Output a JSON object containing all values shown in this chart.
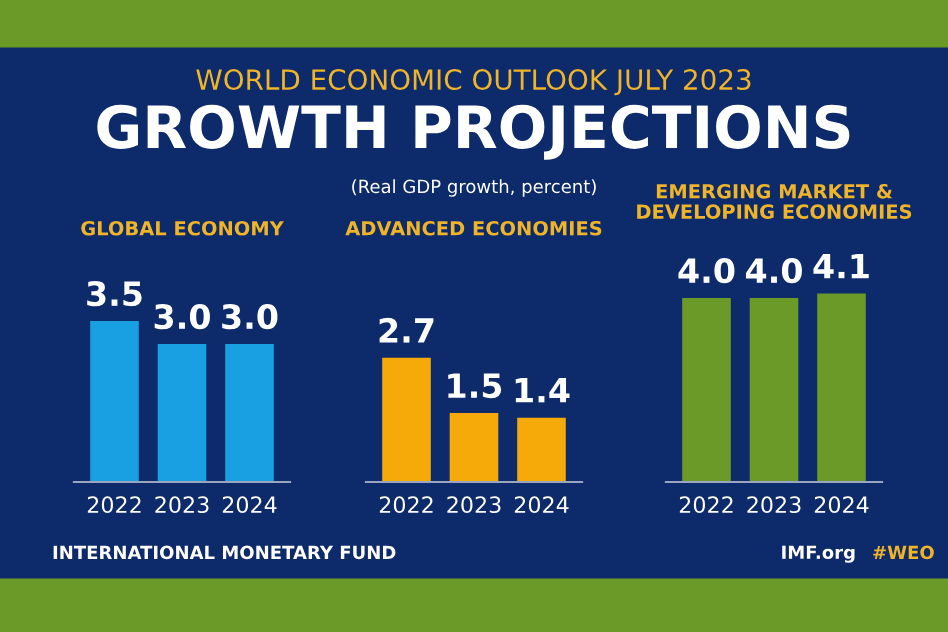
{
  "chart_data": [
    {
      "type": "bar",
      "title": "GLOBAL ECONOMY",
      "categories": [
        "2022",
        "2023",
        "2024"
      ],
      "values": [
        3.5,
        3.0,
        3.0
      ],
      "value_labels": [
        "3.5",
        "3.0",
        "3.0"
      ],
      "color": "#19a0e3",
      "tick_labels": "x",
      "annotations": [
        "WORLD ECONOMIC OUTLOOK JULY 2023",
        "GROWTH PROJECTIONS",
        "(Real GDP growth, percent)",
        "INTERNATIONAL MONETARY FUND",
        "IMF.org",
        "#WEO"
      ]
    },
    {
      "type": "bar",
      "title": "ADVANCED ECONOMIES",
      "categories": [
        "2022",
        "2023",
        "2024"
      ],
      "values": [
        2.7,
        1.5,
        1.4
      ],
      "value_labels": [
        "2.7",
        "1.5",
        "1.4"
      ],
      "color": "#f5aa0a",
      "tick_labels": "x"
    },
    {
      "type": "bar",
      "title": "EMERGING MARKET &\nDEVELOPING ECONOMIES",
      "categories": [
        "2022",
        "2023",
        "2024"
      ],
      "values": [
        4.0,
        4.0,
        4.1
      ],
      "value_labels": [
        "4.0",
        "4.0",
        "4.1"
      ],
      "color": "#6b9a28",
      "tick_labels": "x"
    }
  ]
}
